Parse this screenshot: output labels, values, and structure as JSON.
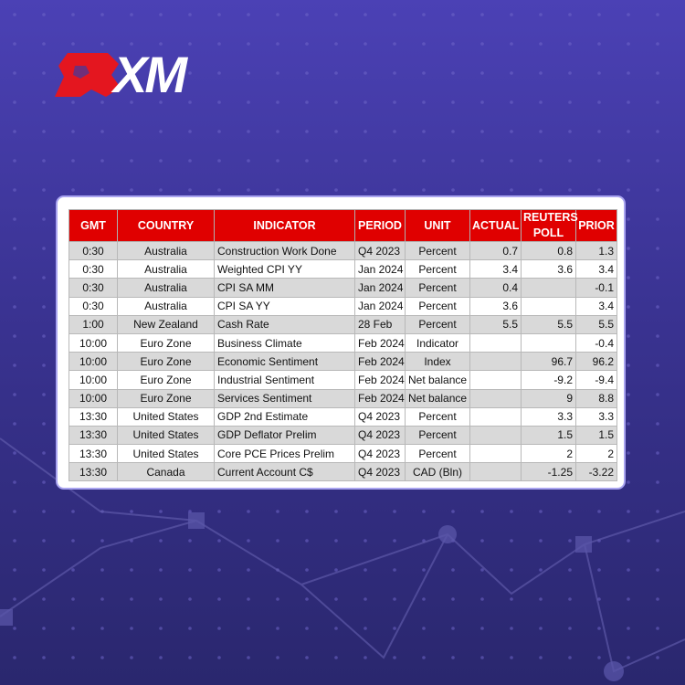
{
  "logo": "XM",
  "table": {
    "header": [
      "GMT",
      "COUNTRY",
      "INDICATOR",
      "PERIOD",
      "UNIT",
      "ACTUAL",
      "REUTERS POLL",
      "PRIOR"
    ],
    "rows": [
      [
        "0:30",
        "Australia",
        "Construction Work Done",
        "Q4 2023",
        "Percent",
        "0.7",
        "0.8",
        "1.3"
      ],
      [
        "0:30",
        "Australia",
        "Weighted CPI YY",
        "Jan 2024",
        "Percent",
        "3.4",
        "3.6",
        "3.4"
      ],
      [
        "0:30",
        "Australia",
        "CPI SA MM",
        "Jan 2024",
        "Percent",
        "0.4",
        null,
        "-0.1"
      ],
      [
        "0:30",
        "Australia",
        "CPI SA YY",
        "Jan 2024",
        "Percent",
        "3.6",
        null,
        "3.4"
      ],
      [
        "1:00",
        "New Zealand",
        "Cash Rate",
        "28 Feb",
        "Percent",
        "5.5",
        "5.5",
        "5.5"
      ],
      [
        "10:00",
        "Euro Zone",
        "Business Climate",
        "Feb 2024",
        "Indicator",
        null,
        null,
        "-0.4"
      ],
      [
        "10:00",
        "Euro Zone",
        "Economic Sentiment",
        "Feb 2024",
        "Index",
        null,
        "96.7",
        "96.2"
      ],
      [
        "10:00",
        "Euro Zone",
        "Industrial Sentiment",
        "Feb 2024",
        "Net balance",
        null,
        "-9.2",
        "-9.4"
      ],
      [
        "10:00",
        "Euro Zone",
        "Services Sentiment",
        "Feb 2024",
        "Net balance",
        null,
        "9",
        "8.8"
      ],
      [
        "13:30",
        "United States",
        "GDP 2nd Estimate",
        "Q4 2023",
        "Percent",
        null,
        "3.3",
        "3.3"
      ],
      [
        "13:30",
        "United States",
        "GDP Deflator Prelim",
        "Q4 2023",
        "Percent",
        null,
        "1.5",
        "1.5"
      ],
      [
        "13:30",
        "United States",
        "Core PCE Prices Prelim",
        "Q4 2023",
        "Percent",
        null,
        "2",
        "2"
      ],
      [
        "13:30",
        "Canada",
        "Current Account C$",
        "Q4 2023",
        "CAD (Bln)",
        null,
        "-1.25",
        "-3.22"
      ]
    ]
  }
}
